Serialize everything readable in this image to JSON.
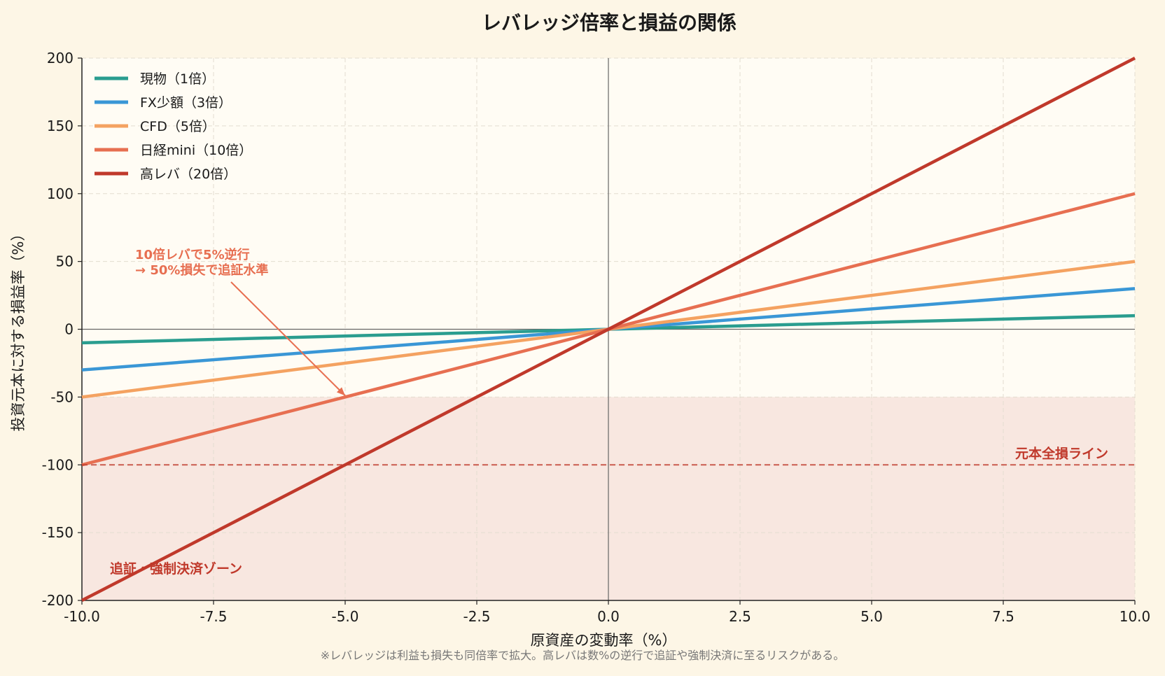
{
  "chart_data": {
    "type": "line",
    "title": "レバレッジ倍率と損益の関係",
    "xlabel": "原資産の変動率（%）",
    "ylabel": "投資元本に対する損益率（%）",
    "xlim": [
      -10,
      10
    ],
    "ylim": [
      -200,
      200
    ],
    "x_ticks": [
      -10,
      -7.5,
      -5,
      -2.5,
      0,
      2.5,
      5,
      7.5,
      10
    ],
    "x_tick_labels": [
      "-10.0",
      "-7.5",
      "-5.0",
      "-2.5",
      "0.0",
      "2.5",
      "5.0",
      "7.5",
      "10.0"
    ],
    "y_ticks": [
      -200,
      -150,
      -100,
      -50,
      0,
      50,
      100,
      150,
      200
    ],
    "y_tick_labels": [
      "-200",
      "-150",
      "-100",
      "-50",
      "0",
      "50",
      "100",
      "150",
      "200"
    ],
    "grid": true,
    "legend_position": "top-left",
    "series": [
      {
        "name": "現物（1倍）",
        "color": "#2a9d8f",
        "x": [
          -10,
          10
        ],
        "y": [
          -10,
          10
        ]
      },
      {
        "name": "FX少額（3倍）",
        "color": "#3a97d6",
        "x": [
          -10,
          10
        ],
        "y": [
          -30,
          30
        ]
      },
      {
        "name": "CFD（5倍）",
        "color": "#f4a261",
        "x": [
          -10,
          10
        ],
        "y": [
          -50,
          50
        ]
      },
      {
        "name": "日経mini（10倍）",
        "color": "#e76f51",
        "x": [
          -10,
          10
        ],
        "y": [
          -100,
          100
        ]
      },
      {
        "name": "高レバ（20倍）",
        "color": "#c0392b",
        "x": [
          -10,
          10
        ],
        "y": [
          -200,
          200
        ]
      }
    ],
    "zone": {
      "label": "追証・強制決済ゾーン",
      "y_from": -200,
      "y_to": -50,
      "color": "#f5e0da"
    },
    "reference_line": {
      "label": "元本全損ライン",
      "y": -100,
      "color": "#c0392b"
    },
    "annotation": {
      "lines": [
        "10倍レバで5%逆行",
        "→ 50%損失で追証水準"
      ],
      "point_x": -5,
      "point_y": -50,
      "color": "#e76f51"
    },
    "footnote": "※レバレッジは利益も損失も同倍率で拡大。高レバは数%の逆行で追証や強制決済に至るリスクがある。"
  }
}
